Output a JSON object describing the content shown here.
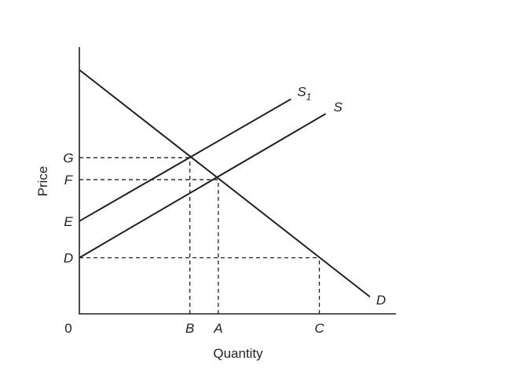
{
  "chart_data": {
    "type": "line",
    "xlabel": "Quantity",
    "ylabel": "Price",
    "origin_label": "0",
    "xlim": [
      0,
      10
    ],
    "ylim": [
      0,
      10
    ],
    "x_ticks": [
      {
        "label": "B",
        "value": 3.5
      },
      {
        "label": "A",
        "value": 4.4
      },
      {
        "label": "C",
        "value": 7.6
      }
    ],
    "y_ticks": [
      {
        "label": "G",
        "value": 6.4
      },
      {
        "label": "F",
        "value": 5.5
      },
      {
        "label": "E",
        "value": 3.8
      },
      {
        "label": "D",
        "value": 2.3
      }
    ],
    "series": [
      {
        "name": "D",
        "x": [
          0,
          9.2
        ],
        "y": [
          10,
          0.7
        ]
      },
      {
        "name": "S",
        "x": [
          0,
          7.8
        ],
        "y": [
          2.3,
          8.2
        ]
      },
      {
        "name": "S1",
        "x": [
          0,
          6.7
        ],
        "y": [
          3.8,
          8.8
        ]
      }
    ],
    "series_labels": {
      "D": {
        "text": "D",
        "sub": ""
      },
      "S": {
        "text": "S",
        "sub": ""
      },
      "S1": {
        "text": "S",
        "sub": "1"
      }
    },
    "guides": [
      {
        "type": "h",
        "y": 6.4,
        "x_end": 3.5
      },
      {
        "type": "h",
        "y": 5.5,
        "x_end": 4.4
      },
      {
        "type": "h",
        "y": 2.3,
        "x_end": 7.6
      },
      {
        "type": "v",
        "x": 3.5,
        "y_end": 6.4
      },
      {
        "type": "v",
        "x": 4.4,
        "y_end": 5.5
      },
      {
        "type": "v",
        "x": 7.6,
        "y_end": 2.3
      }
    ]
  }
}
